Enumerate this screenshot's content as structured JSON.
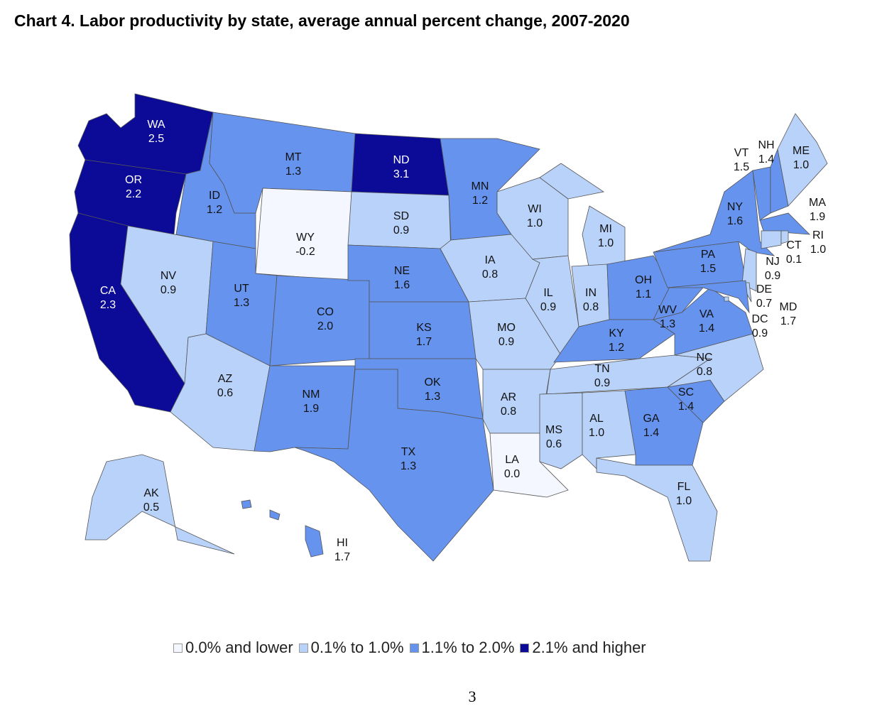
{
  "title": "Chart 4. Labor productivity by state, average annual percent change, 2007-2020",
  "page_number": "3",
  "legend": [
    {
      "label": "0.0% and lower",
      "color": "#f4f7ff"
    },
    {
      "label": "0.1% to 1.0%",
      "color": "#b9d2f9"
    },
    {
      "label": "1.1% to 2.0%",
      "color": "#6593ee"
    },
    {
      "label": "2.1% and higher",
      "color": "#0b0b97"
    }
  ],
  "chart_data": {
    "type": "choropleth",
    "title": "Chart 4. Labor productivity by state, average annual percent change, 2007-2020",
    "states": [
      {
        "abbr": "WA",
        "value": "2.5",
        "category": 3
      },
      {
        "abbr": "OR",
        "value": "2.2",
        "category": 3
      },
      {
        "abbr": "CA",
        "value": "2.3",
        "category": 3
      },
      {
        "abbr": "NV",
        "value": "0.9",
        "category": 1
      },
      {
        "abbr": "ID",
        "value": "1.2",
        "category": 2
      },
      {
        "abbr": "MT",
        "value": "1.3",
        "category": 2
      },
      {
        "abbr": "WY",
        "value": "-0.2",
        "category": 0
      },
      {
        "abbr": "UT",
        "value": "1.3",
        "category": 2
      },
      {
        "abbr": "AZ",
        "value": "0.6",
        "category": 1
      },
      {
        "abbr": "CO",
        "value": "2.0",
        "category": 2
      },
      {
        "abbr": "NM",
        "value": "1.9",
        "category": 2
      },
      {
        "abbr": "ND",
        "value": "3.1",
        "category": 3
      },
      {
        "abbr": "SD",
        "value": "0.9",
        "category": 1
      },
      {
        "abbr": "NE",
        "value": "1.6",
        "category": 2
      },
      {
        "abbr": "KS",
        "value": "1.7",
        "category": 2
      },
      {
        "abbr": "OK",
        "value": "1.3",
        "category": 2
      },
      {
        "abbr": "TX",
        "value": "1.3",
        "category": 2
      },
      {
        "abbr": "MN",
        "value": "1.2",
        "category": 2
      },
      {
        "abbr": "IA",
        "value": "0.8",
        "category": 1
      },
      {
        "abbr": "MO",
        "value": "0.9",
        "category": 1
      },
      {
        "abbr": "AR",
        "value": "0.8",
        "category": 1
      },
      {
        "abbr": "LA",
        "value": "0.0",
        "category": 0
      },
      {
        "abbr": "WI",
        "value": "1.0",
        "category": 1
      },
      {
        "abbr": "IL",
        "value": "0.9",
        "category": 1
      },
      {
        "abbr": "MI",
        "value": "1.0",
        "category": 1
      },
      {
        "abbr": "IN",
        "value": "0.8",
        "category": 1
      },
      {
        "abbr": "OH",
        "value": "1.1",
        "category": 2
      },
      {
        "abbr": "KY",
        "value": "1.2",
        "category": 2
      },
      {
        "abbr": "TN",
        "value": "0.9",
        "category": 1
      },
      {
        "abbr": "MS",
        "value": "0.6",
        "category": 1
      },
      {
        "abbr": "AL",
        "value": "1.0",
        "category": 1
      },
      {
        "abbr": "GA",
        "value": "1.4",
        "category": 2
      },
      {
        "abbr": "FL",
        "value": "1.0",
        "category": 1
      },
      {
        "abbr": "SC",
        "value": "1.4",
        "category": 2
      },
      {
        "abbr": "NC",
        "value": "0.8",
        "category": 1
      },
      {
        "abbr": "VA",
        "value": "1.4",
        "category": 2
      },
      {
        "abbr": "WV",
        "value": "1.3",
        "category": 2
      },
      {
        "abbr": "PA",
        "value": "1.5",
        "category": 2
      },
      {
        "abbr": "NY",
        "value": "1.6",
        "category": 2
      },
      {
        "abbr": "NJ",
        "value": "0.9",
        "category": 1
      },
      {
        "abbr": "DE",
        "value": "0.7",
        "category": 1
      },
      {
        "abbr": "MD",
        "value": "1.7",
        "category": 2
      },
      {
        "abbr": "DC",
        "value": "0.9",
        "category": 1
      },
      {
        "abbr": "VT",
        "value": "1.5",
        "category": 2
      },
      {
        "abbr": "NH",
        "value": "1.4",
        "category": 2
      },
      {
        "abbr": "ME",
        "value": "1.0",
        "category": 1
      },
      {
        "abbr": "MA",
        "value": "1.9",
        "category": 2
      },
      {
        "abbr": "CT",
        "value": "0.1",
        "category": 1
      },
      {
        "abbr": "RI",
        "value": "1.0",
        "category": 1
      },
      {
        "abbr": "AK",
        "value": "0.5",
        "category": 1
      },
      {
        "abbr": "HI",
        "value": "1.7",
        "category": 2
      }
    ]
  }
}
